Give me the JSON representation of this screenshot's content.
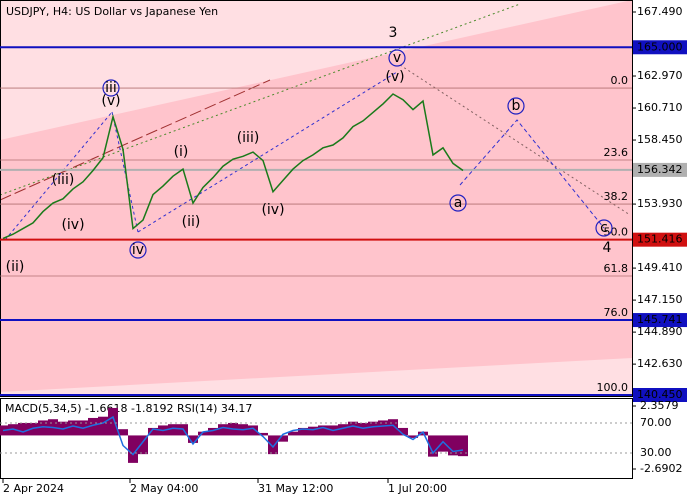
{
  "chart_data": {
    "type": "line",
    "title": "USDJPY, H4:  US Dollar vs Japanese Yen",
    "color": "#1a7a1a",
    "values": [
      151.5,
      151.8,
      152.2,
      152.6,
      153.4,
      154.0,
      154.3,
      155.0,
      155.5,
      156.3,
      157.2,
      160.1,
      157.8,
      152.2,
      152.8,
      154.6,
      155.2,
      155.9,
      156.4,
      154.0,
      155.1,
      155.8,
      156.6,
      157.1,
      157.3,
      157.6,
      157.0,
      154.8,
      155.6,
      156.4,
      157.0,
      157.4,
      157.9,
      158.1,
      158.6,
      159.4,
      159.8,
      160.4,
      161.0,
      161.7,
      161.3,
      160.6,
      161.2,
      157.4,
      157.9,
      156.8,
      156.3
    ],
    "ylim": [
      140.45,
      167.49
    ],
    "yticks": [
      {
        "value": 167.49,
        "label": "167.490"
      },
      {
        "value": 162.97,
        "label": "162.970"
      },
      {
        "value": 160.71,
        "label": "160.710"
      },
      {
        "value": 158.45,
        "label": "158.450"
      },
      {
        "value": 153.93,
        "label": "153.930"
      },
      {
        "value": 149.41,
        "label": "149.410"
      },
      {
        "value": 147.15,
        "label": "147.150"
      },
      {
        "value": 144.89,
        "label": "144.890"
      },
      {
        "value": 142.63,
        "label": "142.630"
      }
    ],
    "xticks": [
      {
        "value": 0,
        "label": "2 Apr 2024"
      },
      {
        "value": 12.7,
        "label": "2 May 04:00"
      },
      {
        "value": 25.5,
        "label": "31 May 12:00"
      },
      {
        "value": 38.5,
        "label": "1 Jul 20:00"
      }
    ],
    "levels": [
      {
        "value": 165.0,
        "label": "165.000",
        "color": "#1010c0"
      },
      {
        "value": 156.342,
        "label": "156.342",
        "color": "#b0b0b0"
      },
      {
        "value": 151.416,
        "label": "151.416",
        "color": "#d01010"
      },
      {
        "value": 145.741,
        "label": "145.741",
        "color": "#1010c0"
      },
      {
        "value": 140.45,
        "label": "140.450",
        "color": "#1010c0"
      }
    ],
    "fib_levels": [
      {
        "value": 162.12,
        "label": "0.0"
      },
      {
        "value": 157.04,
        "label": "23.6"
      },
      {
        "value": 153.93,
        "label": "38.2"
      },
      {
        "value": 151.416,
        "label": "50.0"
      },
      {
        "value": 148.85,
        "label": "61.8"
      },
      {
        "value": 145.741,
        "label": "76.0"
      },
      {
        "value": 140.45,
        "label": "100.0"
      }
    ],
    "annotations": [
      {
        "text": "3",
        "color": "#a0522d",
        "circled": false
      },
      {
        "text": "4",
        "color": "#a0522d",
        "circled": false
      },
      {
        "text": "v",
        "color": "#2020c0",
        "circled": true
      },
      {
        "text": "(v)",
        "color": "#d02020",
        "circled": false
      },
      {
        "text": "iii",
        "color": "#2020c0",
        "circled": true
      },
      {
        "text": "(v)",
        "color": "#d02020",
        "circled": false
      },
      {
        "text": "(iii)",
        "color": "#d02020",
        "circled": false
      },
      {
        "text": "(iv)",
        "color": "#d02020",
        "circled": false
      },
      {
        "text": "(ii)",
        "color": "#d02020",
        "circled": false
      },
      {
        "text": "iv",
        "color": "#2020c0",
        "circled": true
      },
      {
        "text": "(i)",
        "color": "#d02020",
        "circled": false
      },
      {
        "text": "(ii)",
        "color": "#d02020",
        "circled": false
      },
      {
        "text": "(iii)",
        "color": "#d02020",
        "circled": false
      },
      {
        "text": "(iv)",
        "color": "#d02020",
        "circled": false
      },
      {
        "text": "a",
        "color": "#2020c0",
        "circled": true
      },
      {
        "text": "b",
        "color": "#2020c0",
        "circled": true
      },
      {
        "text": "c",
        "color": "#2020c0",
        "circled": true
      }
    ],
    "indicator": {
      "label": "MACD(5,34,5) -1.6618 -1.8192 RSI(14) 34.17",
      "histogram_color": "#800060",
      "rsi_color": "#1e6fe0",
      "histogram": [
        0.8,
        0.9,
        1.0,
        1.0,
        1.2,
        1.3,
        1.1,
        1.2,
        1.2,
        1.4,
        1.5,
        2.2,
        0.5,
        -2.2,
        -1.5,
        0.6,
        0.8,
        0.9,
        0.9,
        -0.6,
        0.3,
        0.6,
        0.9,
        1.0,
        0.9,
        0.8,
        0.2,
        -1.5,
        -0.5,
        0.3,
        0.6,
        0.7,
        0.8,
        0.8,
        0.9,
        1.1,
        1.0,
        1.1,
        1.2,
        1.3,
        0.6,
        -0.2,
        0.3,
        -1.7,
        -1.3,
        -1.6,
        -1.66
      ],
      "rsi": [
        60,
        62,
        58,
        63,
        65,
        64,
        62,
        66,
        63,
        67,
        70,
        78,
        40,
        28,
        45,
        62,
        60,
        63,
        62,
        42,
        58,
        60,
        64,
        62,
        61,
        63,
        52,
        38,
        55,
        60,
        62,
        61,
        64,
        60,
        63,
        66,
        63,
        65,
        66,
        67,
        55,
        48,
        58,
        30,
        45,
        32,
        34
      ],
      "ylim": [
        -2.6902,
        2.3579
      ],
      "yticks": [
        2.3579,
        -2.6902
      ],
      "rsi_ylim": [
        0,
        100
      ],
      "rsi_ticks": [
        {
          "value": 70,
          "label": "70.00"
        },
        {
          "value": 30,
          "label": "30.00"
        }
      ]
    }
  }
}
